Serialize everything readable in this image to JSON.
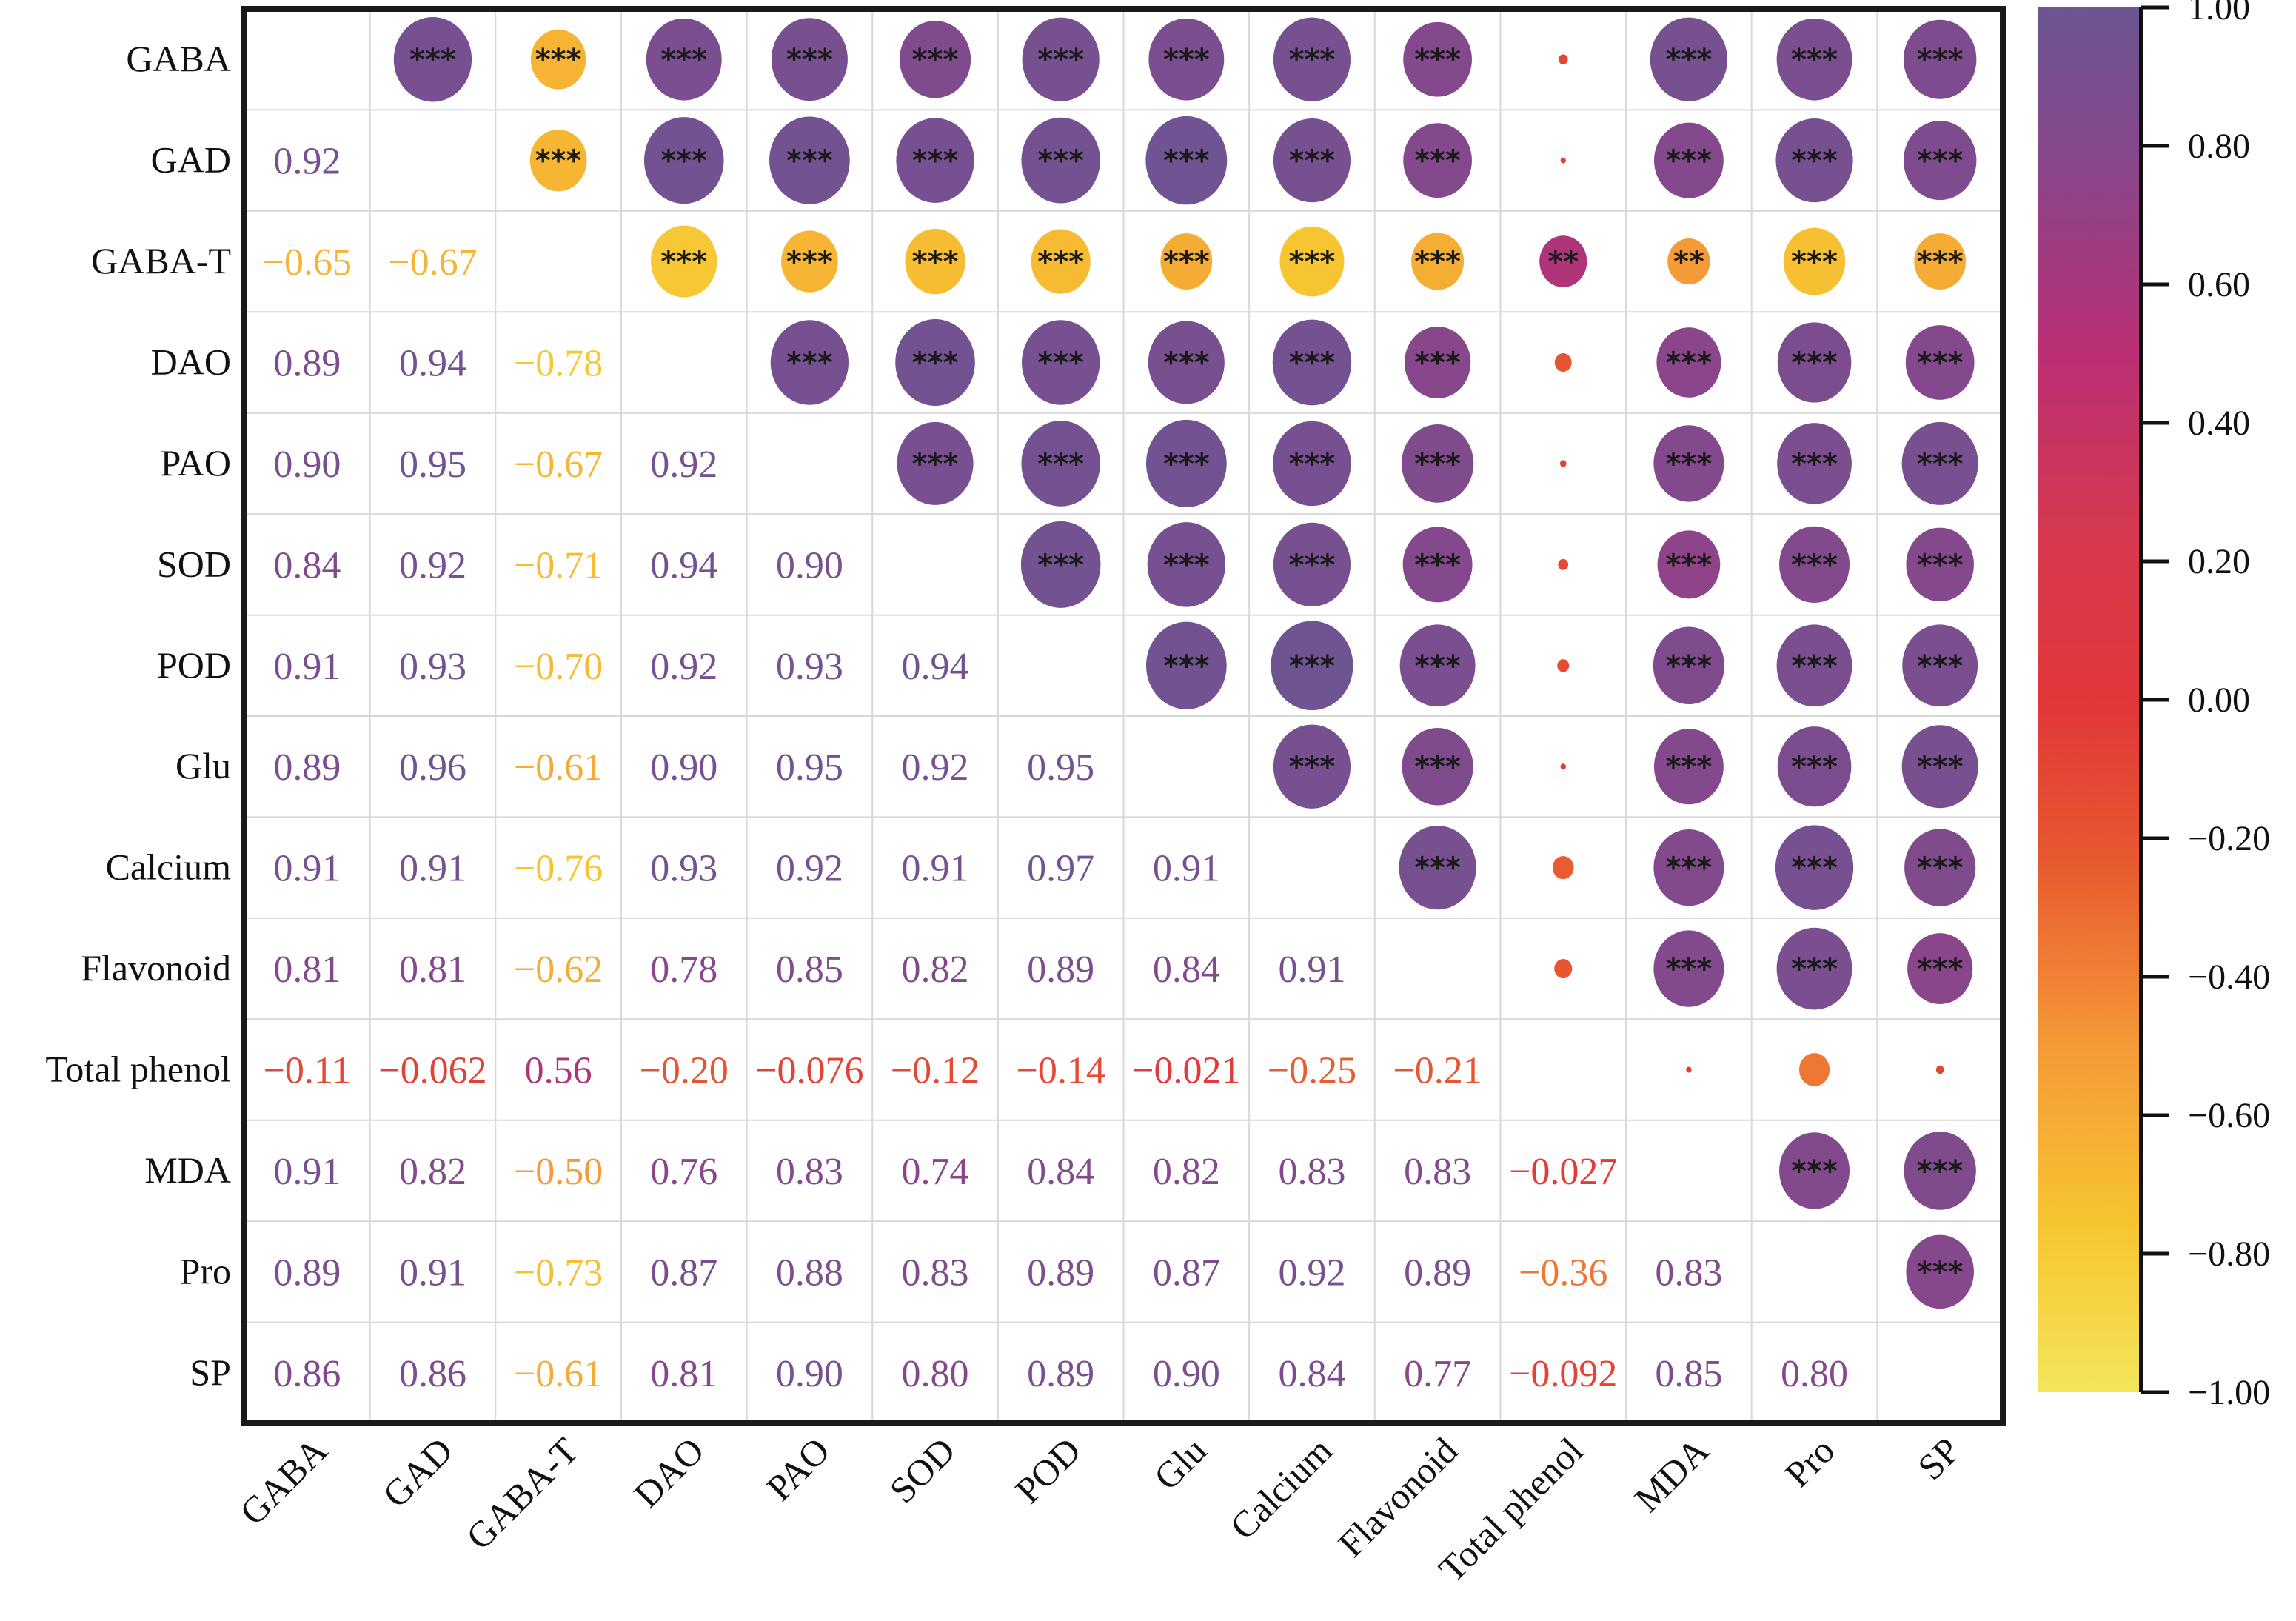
{
  "chart_data": {
    "type": "heatmap",
    "title": "",
    "variables": [
      "GABA",
      "GAD",
      "GABA-T",
      "DAO",
      "PAO",
      "SOD",
      "POD",
      "Glu",
      "Calcium",
      "Flavonoid",
      "Total phenol",
      "MDA",
      "Pro",
      "SP"
    ],
    "lower_triangle": "correlation coefficient text",
    "upper_triangle": "circles sized/colored by correlation with significance stars",
    "correlation_labels": [
      [
        null,
        null,
        null,
        null,
        null,
        null,
        null,
        null,
        null,
        null,
        null,
        null,
        null,
        null
      ],
      [
        "0.92",
        null,
        null,
        null,
        null,
        null,
        null,
        null,
        null,
        null,
        null,
        null,
        null,
        null
      ],
      [
        "-0.65",
        "-0.67",
        null,
        null,
        null,
        null,
        null,
        null,
        null,
        null,
        null,
        null,
        null,
        null
      ],
      [
        "0.89",
        "0.94",
        "-0.78",
        null,
        null,
        null,
        null,
        null,
        null,
        null,
        null,
        null,
        null,
        null
      ],
      [
        "0.90",
        "0.95",
        "-0.67",
        "0.92",
        null,
        null,
        null,
        null,
        null,
        null,
        null,
        null,
        null,
        null
      ],
      [
        "0.84",
        "0.92",
        "-0.71",
        "0.94",
        "0.90",
        null,
        null,
        null,
        null,
        null,
        null,
        null,
        null,
        null
      ],
      [
        "0.91",
        "0.93",
        "-0.70",
        "0.92",
        "0.93",
        "0.94",
        null,
        null,
        null,
        null,
        null,
        null,
        null,
        null
      ],
      [
        "0.89",
        "0.96",
        "-0.61",
        "0.90",
        "0.95",
        "0.92",
        "0.95",
        null,
        null,
        null,
        null,
        null,
        null,
        null
      ],
      [
        "0.91",
        "0.91",
        "-0.76",
        "0.93",
        "0.92",
        "0.91",
        "0.97",
        "0.91",
        null,
        null,
        null,
        null,
        null,
        null
      ],
      [
        "0.81",
        "0.81",
        "-0.62",
        "0.78",
        "0.85",
        "0.82",
        "0.89",
        "0.84",
        "0.91",
        null,
        null,
        null,
        null,
        null
      ],
      [
        "-0.11",
        "-0.062",
        "0.56",
        "-0.20",
        "-0.076",
        "-0.12",
        "-0.14",
        "-0.021",
        "-0.25",
        "-0.21",
        null,
        null,
        null,
        null
      ],
      [
        "0.91",
        "0.82",
        "-0.50",
        "0.76",
        "0.83",
        "0.74",
        "0.84",
        "0.82",
        "0.83",
        "0.83",
        "-0.027",
        null,
        null,
        null
      ],
      [
        "0.89",
        "0.91",
        "-0.73",
        "0.87",
        "0.88",
        "0.83",
        "0.89",
        "0.87",
        "0.92",
        "0.89",
        "-0.36",
        "0.83",
        null,
        null
      ],
      [
        "0.86",
        "0.86",
        "-0.61",
        "0.81",
        "0.90",
        "0.80",
        "0.89",
        "0.90",
        "0.84",
        "0.77",
        "-0.092",
        "0.85",
        "0.80",
        null
      ]
    ],
    "significance": [
      [
        null,
        "***",
        "***",
        "***",
        "***",
        "***",
        "***",
        "***",
        "***",
        "***",
        "",
        "***",
        "***",
        "***"
      ],
      [
        null,
        null,
        "***",
        "***",
        "***",
        "***",
        "***",
        "***",
        "***",
        "***",
        "",
        "***",
        "***",
        "***"
      ],
      [
        null,
        null,
        null,
        "***",
        "***",
        "***",
        "***",
        "***",
        "***",
        "***",
        "**",
        "**",
        "***",
        "***"
      ],
      [
        null,
        null,
        null,
        null,
        "***",
        "***",
        "***",
        "***",
        "***",
        "***",
        "",
        "***",
        "***",
        "***"
      ],
      [
        null,
        null,
        null,
        null,
        null,
        "***",
        "***",
        "***",
        "***",
        "***",
        "",
        "***",
        "***",
        "***"
      ],
      [
        null,
        null,
        null,
        null,
        null,
        null,
        "***",
        "***",
        "***",
        "***",
        "",
        "***",
        "***",
        "***"
      ],
      [
        null,
        null,
        null,
        null,
        null,
        null,
        null,
        "***",
        "***",
        "***",
        "",
        "***",
        "***",
        "***"
      ],
      [
        null,
        null,
        null,
        null,
        null,
        null,
        null,
        null,
        "***",
        "***",
        "",
        "***",
        "***",
        "***"
      ],
      [
        null,
        null,
        null,
        null,
        null,
        null,
        null,
        null,
        null,
        "***",
        "",
        "***",
        "***",
        "***"
      ],
      [
        null,
        null,
        null,
        null,
        null,
        null,
        null,
        null,
        null,
        null,
        "",
        "***",
        "***",
        "***"
      ],
      [
        null,
        null,
        null,
        null,
        null,
        null,
        null,
        null,
        null,
        null,
        null,
        "",
        "",
        ""
      ],
      [
        null,
        null,
        null,
        null,
        null,
        null,
        null,
        null,
        null,
        null,
        null,
        null,
        "***",
        "***"
      ],
      [
        null,
        null,
        null,
        null,
        null,
        null,
        null,
        null,
        null,
        null,
        null,
        null,
        null,
        "***"
      ],
      [
        null,
        null,
        null,
        null,
        null,
        null,
        null,
        null,
        null,
        null,
        null,
        null,
        null,
        null
      ]
    ],
    "colorbar": {
      "range": [
        -1,
        1
      ],
      "ticks": [
        "1.00",
        "0.80",
        "0.60",
        "0.40",
        "0.20",
        "0.00",
        "-0.20",
        "-0.40",
        "-0.60",
        "-0.80",
        "-1.00"
      ],
      "colors": [
        "#f3e55b",
        "#f7c531",
        "#f49a37",
        "#e85a2f",
        "#e1373a",
        "#c92f66",
        "#a93a87",
        "#7b4c8f",
        "#6b5693"
      ],
      "position": "right"
    },
    "grid": true
  }
}
